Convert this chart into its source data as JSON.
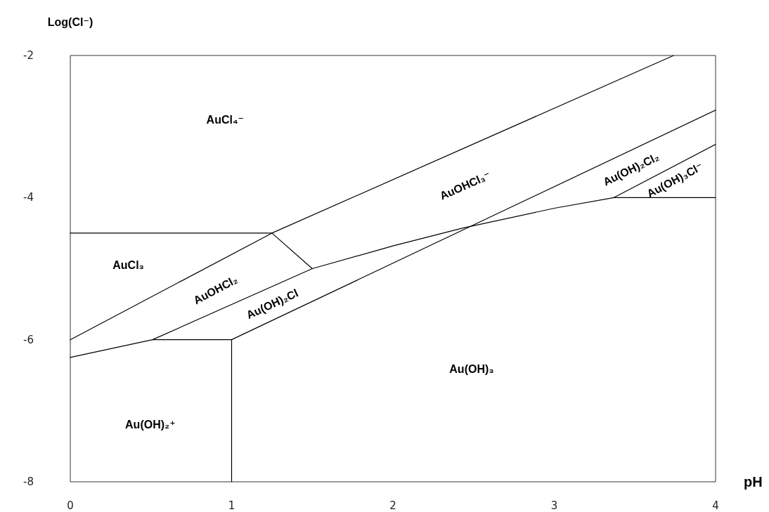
{
  "chart_data": {
    "type": "line",
    "xlabel": "pH",
    "ylabel": "Log(Cl⁻)",
    "xlim": [
      0,
      4
    ],
    "ylim": [
      -8,
      -2
    ],
    "xticks": [
      0,
      1,
      2,
      3,
      4
    ],
    "yticks": [
      -8,
      -6,
      -4,
      -2
    ],
    "marker": "none",
    "line_style": "solid",
    "series": [
      {
        "color": "#000000",
        "x": [
          0,
          1.25
        ],
        "values": [
          -4.5,
          -4.5
        ]
      },
      {
        "color": "#000000",
        "x": [
          0,
          1.25,
          3.74
        ],
        "values": [
          -6.0,
          -4.5,
          -2.0
        ]
      },
      {
        "color": "#000000",
        "x": [
          1.25,
          1.5
        ],
        "values": [
          -4.5,
          -5.0
        ]
      },
      {
        "color": "#000000",
        "x": [
          0,
          0.51,
          1.5,
          2.0,
          2.43,
          3.0,
          3.37,
          4.0
        ],
        "values": [
          -6.25,
          -6.0,
          -5.0,
          -4.68,
          -4.43,
          -4.15,
          -4.0,
          -4.0
        ]
      },
      {
        "color": "#000000",
        "x": [
          1.0,
          4.0
        ],
        "values": [
          -6.0,
          -2.77
        ]
      },
      {
        "color": "#000000",
        "x": [
          3.37,
          4.0
        ],
        "values": [
          -4.0,
          -3.25
        ]
      },
      {
        "color": "#000000",
        "x": [
          0.51,
          1.0,
          1.0
        ],
        "values": [
          -6.0,
          -6.0,
          -8.0
        ]
      }
    ],
    "annotations": [
      "AuCl₄⁻",
      "AuCl₃",
      "AuOHCl₂",
      "Au(OH)₂Cl",
      "AuOHCl₃⁻",
      "Au(OH)₂Cl₂",
      "Au(OH)₃Cl⁻",
      "Au(OH)₃",
      "Au(OH)₂⁺"
    ]
  }
}
